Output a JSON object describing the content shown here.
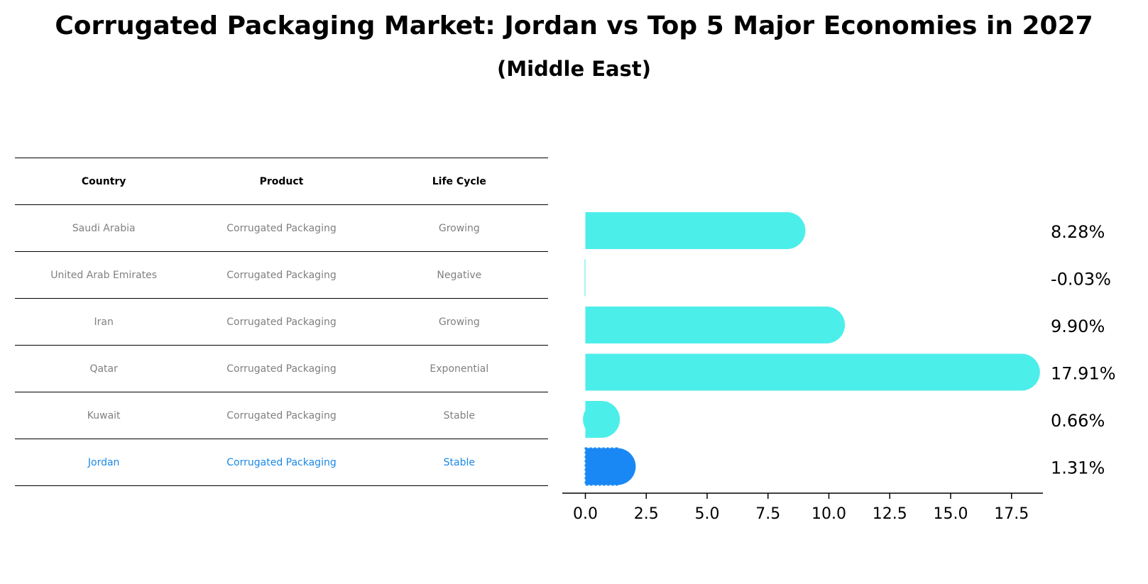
{
  "title": "Corrugated Packaging Market: Jordan vs Top 5 Major Economies in 2027",
  "subtitle": "(Middle East)",
  "table": {
    "headers": [
      "Country",
      "Product",
      "Life Cycle"
    ],
    "rows": [
      {
        "country": "Saudi Arabia",
        "product": "Corrugated Packaging",
        "life_cycle": "Growing"
      },
      {
        "country": "United Arab Emirates",
        "product": "Corrugated Packaging",
        "life_cycle": "Negative"
      },
      {
        "country": "Iran",
        "product": "Corrugated Packaging",
        "life_cycle": "Growing"
      },
      {
        "country": "Qatar",
        "product": "Corrugated Packaging",
        "life_cycle": "Exponential"
      },
      {
        "country": "Kuwait",
        "product": "Corrugated Packaging",
        "life_cycle": "Stable"
      },
      {
        "country": "Jordan",
        "product": "Corrugated Packaging",
        "life_cycle": "Stable"
      }
    ]
  },
  "colors": {
    "bar": "#4ceeea",
    "highlight_bar": "#1a88f4",
    "highlight_text": "#1a88e6",
    "muted_text": "#808080"
  },
  "chart_data": {
    "type": "bar",
    "orientation": "horizontal",
    "categories": [
      "Saudi Arabia",
      "United Arab Emirates",
      "Iran",
      "Qatar",
      "Kuwait",
      "Jordan"
    ],
    "values": [
      8.28,
      -0.03,
      9.9,
      17.91,
      0.66,
      1.31
    ],
    "value_labels": [
      "8.28%",
      "-0.03%",
      "9.90%",
      "17.91%",
      "0.66%",
      "1.31%"
    ],
    "highlight": "Jordan",
    "xlim": [
      -0.9,
      18.9
    ],
    "xticks": [
      0.0,
      2.5,
      5.0,
      7.5,
      10.0,
      12.5,
      15.0,
      17.5
    ],
    "xtick_labels": [
      "0.0",
      "2.5",
      "5.0",
      "7.5",
      "10.0",
      "12.5",
      "15.0",
      "17.5"
    ],
    "grid": false
  }
}
